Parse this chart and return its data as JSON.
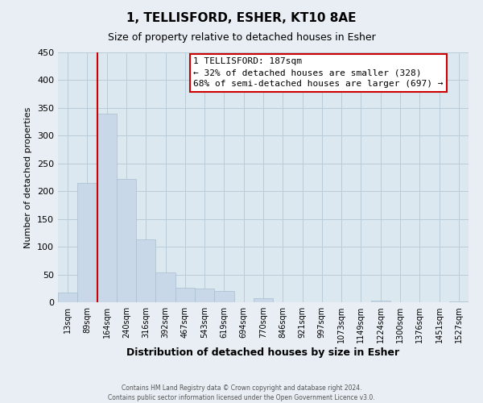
{
  "title": "1, TELLISFORD, ESHER, KT10 8AE",
  "subtitle": "Size of property relative to detached houses in Esher",
  "xlabel": "Distribution of detached houses by size in Esher",
  "ylabel": "Number of detached properties",
  "bar_color": "#c8d8e8",
  "bar_edge_color": "#a8bece",
  "categories": [
    "13sqm",
    "89sqm",
    "164sqm",
    "240sqm",
    "316sqm",
    "392sqm",
    "467sqm",
    "543sqm",
    "619sqm",
    "694sqm",
    "770sqm",
    "846sqm",
    "921sqm",
    "997sqm",
    "1073sqm",
    "1149sqm",
    "1224sqm",
    "1300sqm",
    "1376sqm",
    "1451sqm",
    "1527sqm"
  ],
  "values": [
    18,
    215,
    340,
    222,
    113,
    53,
    26,
    25,
    20,
    0,
    7,
    0,
    0,
    0,
    0,
    0,
    3,
    0,
    0,
    0,
    2
  ],
  "ylim": [
    0,
    450
  ],
  "yticks": [
    0,
    50,
    100,
    150,
    200,
    250,
    300,
    350,
    400,
    450
  ],
  "vline_color": "#cc0000",
  "annotation_title": "1 TELLISFORD: 187sqm",
  "annotation_line1": "← 32% of detached houses are smaller (328)",
  "annotation_line2": "68% of semi-detached houses are larger (697) →",
  "annotation_box_color": "#ffffff",
  "annotation_box_edge": "#cc0000",
  "footer1": "Contains HM Land Registry data © Crown copyright and database right 2024.",
  "footer2": "Contains public sector information licensed under the Open Government Licence v3.0.",
  "background_color": "#e8eef4",
  "plot_bg_color": "#dce8f0",
  "grid_color": "#b8ccd8"
}
